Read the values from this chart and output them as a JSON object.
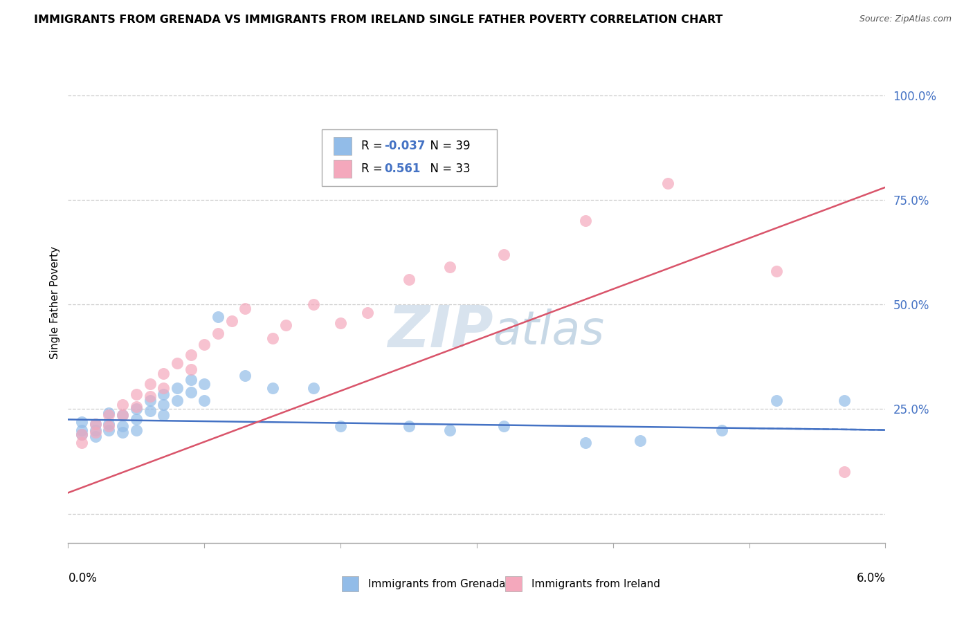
{
  "title": "IMMIGRANTS FROM GRENADA VS IMMIGRANTS FROM IRELAND SINGLE FATHER POVERTY CORRELATION CHART",
  "source": "Source: ZipAtlas.com",
  "ylabel": "Single Father Poverty",
  "y_ticks": [
    0.0,
    0.25,
    0.5,
    0.75,
    1.0
  ],
  "y_tick_labels": [
    "",
    "25.0%",
    "50.0%",
    "75.0%",
    "100.0%"
  ],
  "x_min": 0.0,
  "x_max": 0.06,
  "y_min": -0.07,
  "y_max": 1.08,
  "legend_grenada": "Immigrants from Grenada",
  "legend_ireland": "Immigrants from Ireland",
  "R_grenada": "-0.037",
  "N_grenada": "39",
  "R_ireland": "0.561",
  "N_ireland": "33",
  "color_grenada": "#92bce8",
  "color_ireland": "#f4a8bc",
  "line_color_grenada": "#4472c4",
  "line_color_ireland": "#d9546a",
  "watermark_color": "#c8d8e8",
  "grid_color": "#cccccc",
  "tick_label_color": "#4472c4",
  "grenada_x": [
    0.001,
    0.001,
    0.001,
    0.002,
    0.002,
    0.002,
    0.003,
    0.003,
    0.003,
    0.004,
    0.004,
    0.004,
    0.005,
    0.005,
    0.005,
    0.006,
    0.006,
    0.007,
    0.007,
    0.007,
    0.008,
    0.008,
    0.009,
    0.009,
    0.01,
    0.01,
    0.011,
    0.013,
    0.015,
    0.018,
    0.02,
    0.025,
    0.028,
    0.032,
    0.038,
    0.042,
    0.048,
    0.052,
    0.057
  ],
  "grenada_y": [
    0.22,
    0.2,
    0.19,
    0.215,
    0.2,
    0.185,
    0.24,
    0.215,
    0.2,
    0.235,
    0.21,
    0.195,
    0.25,
    0.225,
    0.2,
    0.27,
    0.245,
    0.285,
    0.26,
    0.235,
    0.3,
    0.27,
    0.32,
    0.29,
    0.31,
    0.27,
    0.47,
    0.33,
    0.3,
    0.3,
    0.21,
    0.21,
    0.2,
    0.21,
    0.17,
    0.175,
    0.2,
    0.27,
    0.27
  ],
  "ireland_x": [
    0.001,
    0.001,
    0.002,
    0.002,
    0.003,
    0.003,
    0.004,
    0.004,
    0.005,
    0.005,
    0.006,
    0.006,
    0.007,
    0.007,
    0.008,
    0.009,
    0.009,
    0.01,
    0.011,
    0.012,
    0.013,
    0.015,
    0.016,
    0.018,
    0.02,
    0.022,
    0.025,
    0.028,
    0.032,
    0.038,
    0.044,
    0.052,
    0.057
  ],
  "ireland_y": [
    0.19,
    0.17,
    0.215,
    0.195,
    0.235,
    0.21,
    0.26,
    0.235,
    0.285,
    0.255,
    0.31,
    0.28,
    0.335,
    0.3,
    0.36,
    0.38,
    0.345,
    0.405,
    0.43,
    0.46,
    0.49,
    0.42,
    0.45,
    0.5,
    0.455,
    0.48,
    0.56,
    0.59,
    0.62,
    0.7,
    0.79,
    0.58,
    0.1
  ]
}
